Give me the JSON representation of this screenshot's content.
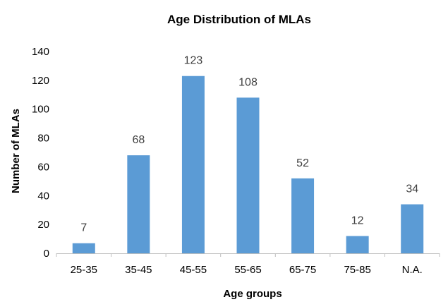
{
  "chart_data": {
    "type": "bar",
    "title": "Age Distribution of MLAs",
    "xlabel": "Age groups",
    "ylabel": "Number of MLAs",
    "categories": [
      "25-35",
      "35-45",
      "45-55",
      "55-65",
      "65-75",
      "75-85",
      "N.A."
    ],
    "values": [
      7,
      68,
      123,
      108,
      52,
      12,
      34
    ],
    "ylim": [
      0,
      140
    ],
    "yticks": [
      0,
      20,
      40,
      60,
      80,
      100,
      120,
      140
    ],
    "grid": false,
    "legend": "none",
    "bar_color": "#5b9bd5",
    "data_labels": true
  }
}
